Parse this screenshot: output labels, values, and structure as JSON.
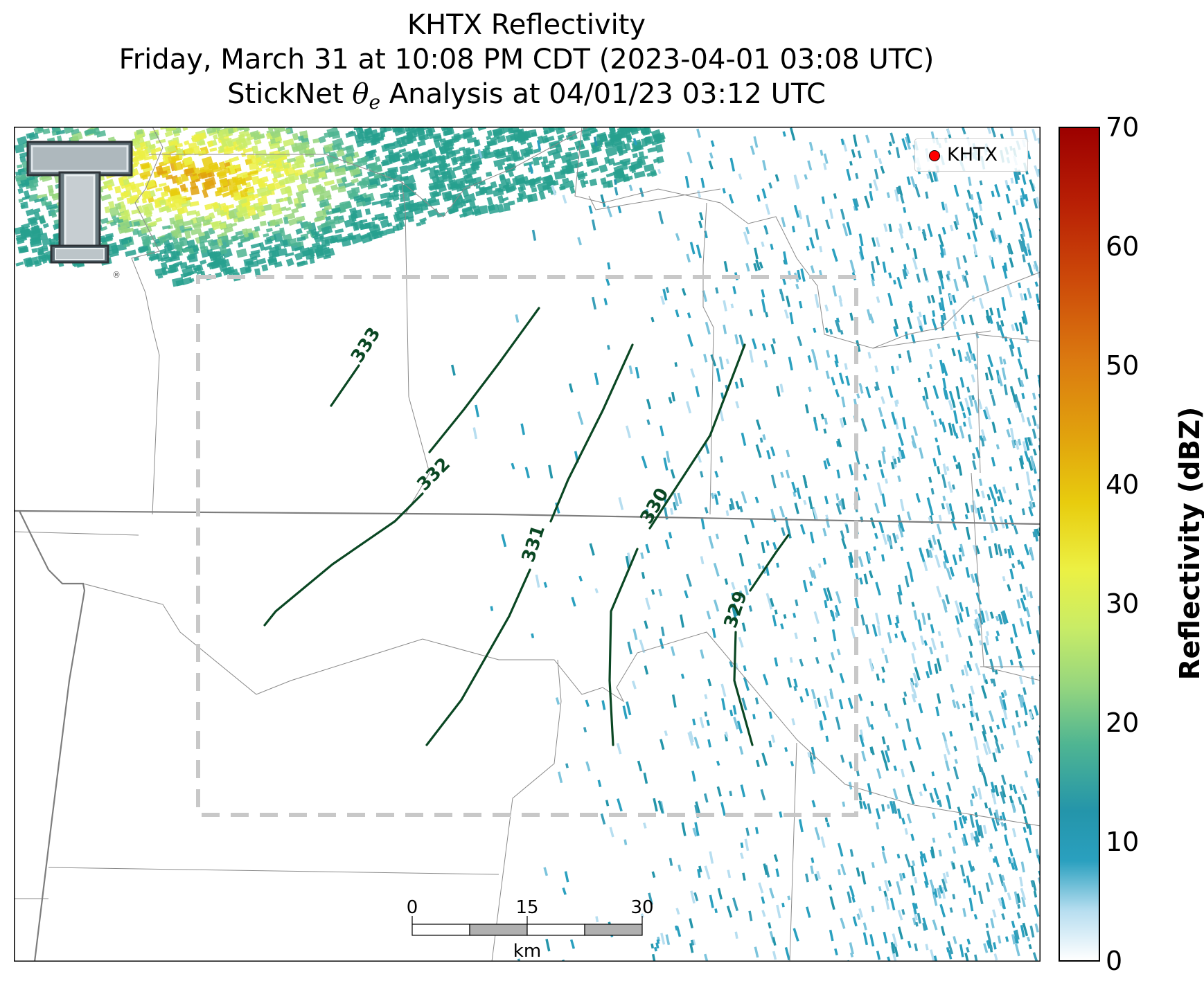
{
  "title": {
    "line1": "KHTX Reflectivity",
    "line2": "Friday, March 31 at 10:08 PM CDT (2023-04-01 03:08 UTC)",
    "line3_prefix": "StickNet ",
    "line3_symbol": "θ",
    "line3_subscript": "e",
    "line3_suffix": " Analysis at 04/01/23 03:12 UTC"
  },
  "legend": {
    "label": "KHTX",
    "marker_color": "#ff0000"
  },
  "colorbar": {
    "label": "Reflectivity (dBZ)",
    "ticks": [
      "70",
      "60",
      "50",
      "40",
      "30",
      "20",
      "10",
      "0"
    ],
    "min": 0,
    "max": 70,
    "colors": [
      "#ffffff",
      "#9fd3e6",
      "#2296b0",
      "#27a08e",
      "#6cc38c",
      "#c5ea6d",
      "#f2ef3a",
      "#e8bf0a",
      "#e18a12",
      "#cf4d0b",
      "#b41506",
      "#9e0000"
    ]
  },
  "contours": {
    "color": "#0a4723",
    "labels": [
      "333",
      "332",
      "331",
      "330",
      "329"
    ]
  },
  "scale_bar": {
    "ticks": [
      "0",
      "15",
      "30"
    ],
    "unit": "km"
  },
  "analysis_box": {
    "style": "dashed",
    "color": "#c8c8c8"
  },
  "logo": {
    "text": "T",
    "mark": "®"
  }
}
